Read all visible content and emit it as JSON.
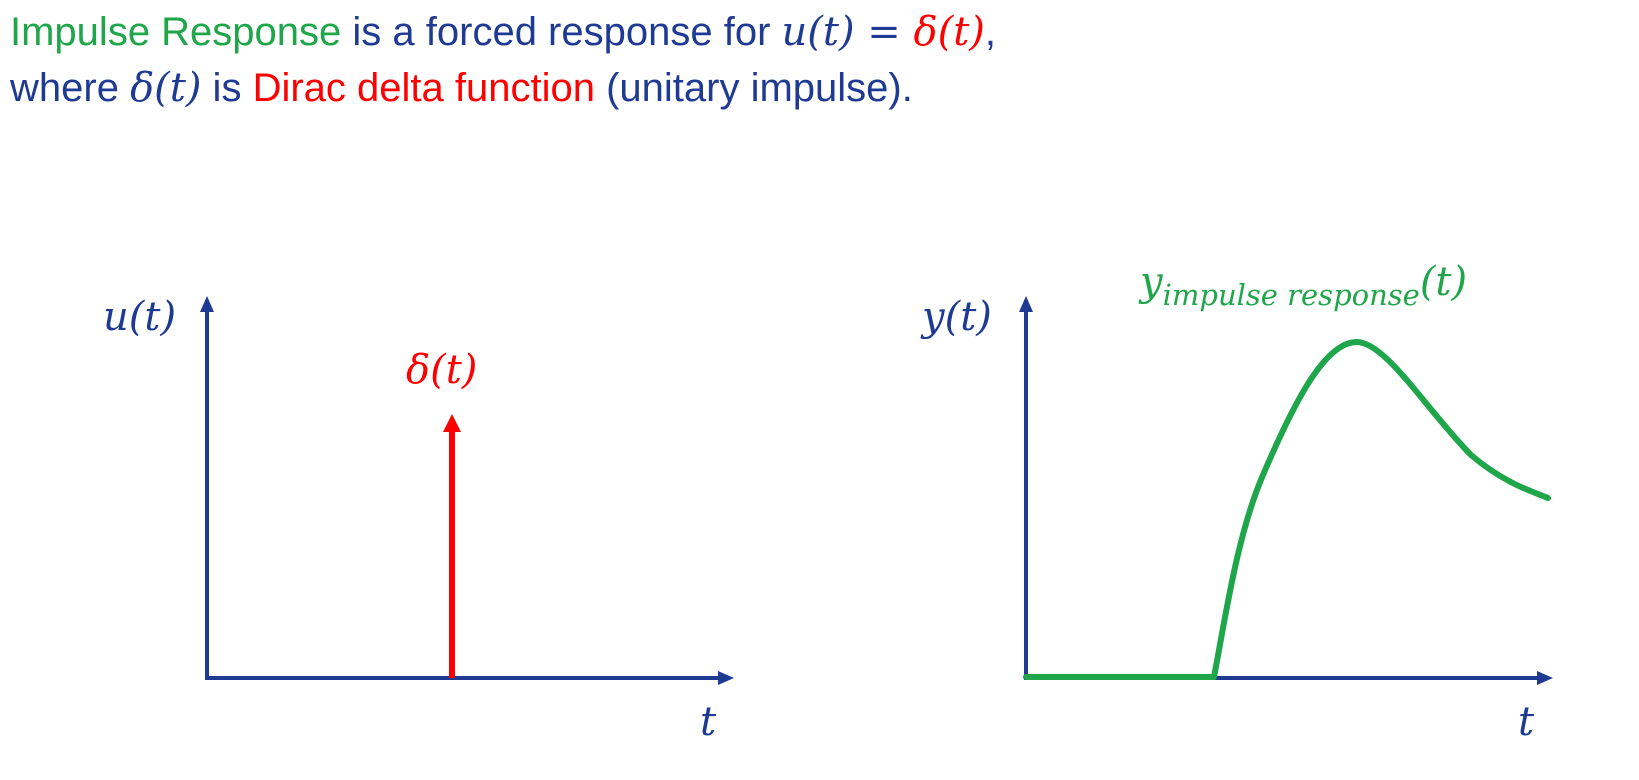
{
  "heading": {
    "line1": {
      "term": "Impulse Response",
      "middle": " is a forced response for ",
      "lhs": "u(t)",
      "equals": " = ",
      "rhs": "δ(t)",
      "end": ","
    },
    "line2": {
      "start": "where ",
      "symbol": "δ(t)",
      "is": " is ",
      "term": "Dirac delta function",
      "end": " (unitary impulse)."
    }
  },
  "input_plot": {
    "y_label": "u(t)",
    "x_label": "t",
    "impulse_label": "δ(t)"
  },
  "output_plot": {
    "y_label": "y(t)",
    "x_label": "t",
    "curve_label_main": "y",
    "curve_label_sub": "impulse response",
    "curve_label_arg": "(t)"
  },
  "colors": {
    "axis": "#1f3a93",
    "impulse": "#ff0000",
    "response": "#1fa64a"
  }
}
